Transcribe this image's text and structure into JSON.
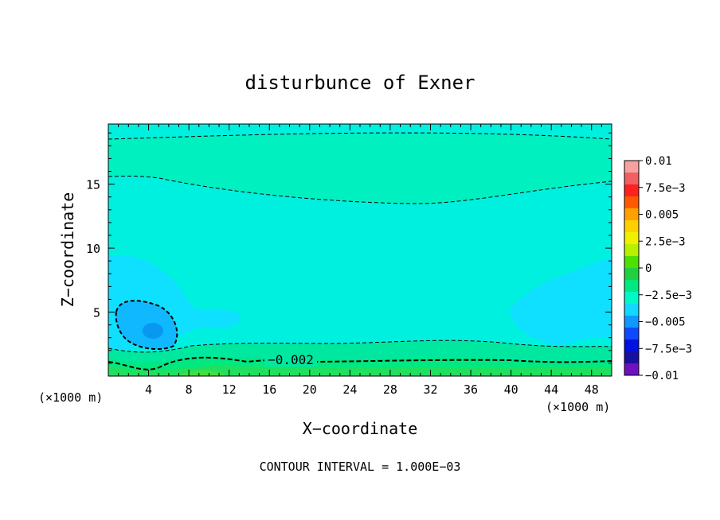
{
  "chart_data": {
    "type": "heatmap",
    "title": "disturbunce of Exner",
    "xlabel": "X−coordinate",
    "ylabel": "Z−coordinate",
    "x_unit_left": "(×1000 m)",
    "x_unit_right": "(×1000 m)",
    "footer": "CONTOUR INTERVAL = 1.000E−03",
    "xlim": [
      0,
      50
    ],
    "ylim": [
      0,
      19.7
    ],
    "x_ticks": [
      4,
      8,
      12,
      16,
      20,
      24,
      28,
      32,
      36,
      40,
      44,
      48
    ],
    "x_tick_labels": [
      "4",
      "8",
      "12",
      "16",
      "20",
      "24",
      "28",
      "32",
      "36",
      "40",
      "44",
      "48"
    ],
    "y_ticks": [
      5,
      10,
      15
    ],
    "y_tick_labels": [
      "5",
      "10",
      "15"
    ],
    "contour_interval": 0.001,
    "contour_label": "−0.002",
    "colorbar": {
      "ticks": [
        "0.01",
        "7.5e−3",
        "0.005",
        "2.5e−3",
        "0",
        "−2.5e−3",
        "−0.005",
        "−7.5e−3",
        "−0.01"
      ],
      "colors_top_to_bottom": [
        "#f8a0a0",
        "#f06060",
        "#ff2020",
        "#ff5a00",
        "#ffa000",
        "#ffd000",
        "#f0f000",
        "#b8f000",
        "#50e000",
        "#20d040",
        "#00e880",
        "#00f8c8",
        "#10d8ff",
        "#1098ff",
        "#1048ff",
        "#0010e0",
        "#1810a0",
        "#7010c0"
      ]
    },
    "colors": {
      "background_band": "#00f0e0",
      "upper_band": "#00f0c0",
      "weak_negative": "#10e0ff",
      "mid_negative": "#10b8ff",
      "low_negative_core": "#0898f0",
      "near_surface_a": "#00e8a0",
      "near_surface_b": "#00e880",
      "near_surface_c": "#20e060",
      "near_surface_d": "#40e040"
    }
  }
}
